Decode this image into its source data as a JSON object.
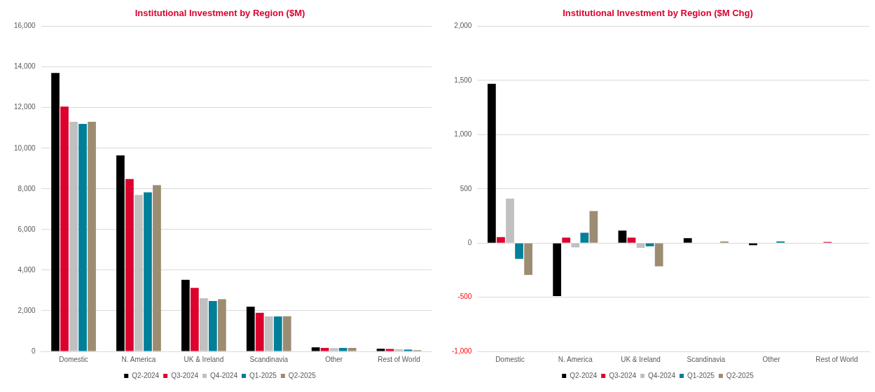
{
  "chart_data": [
    {
      "type": "bar",
      "title": "Institutional Investment by Region ($M)",
      "categories": [
        "Domestic",
        "N. America",
        "UK & Ireland",
        "Scandinavia",
        "Other",
        "Rest of World"
      ],
      "ylim": [
        0,
        16000
      ],
      "yticks": [
        {
          "value": 0,
          "label": "0"
        },
        {
          "value": 2000,
          "label": "2,000"
        },
        {
          "value": 4000,
          "label": "4,000"
        },
        {
          "value": 6000,
          "label": "6,000"
        },
        {
          "value": 8000,
          "label": "8,000"
        },
        {
          "value": 10000,
          "label": "10,000"
        },
        {
          "value": 12000,
          "label": "12,000"
        },
        {
          "value": 14000,
          "label": "14,000"
        },
        {
          "value": 16000,
          "label": "16,000"
        }
      ],
      "grid": "y",
      "legend": "bottom",
      "series": [
        {
          "name": "Q2-2024",
          "color": "#000000",
          "values": [
            13700,
            9650,
            3520,
            2200,
            200,
            130
          ]
        },
        {
          "name": "Q3-2024",
          "color": "#dc002e",
          "values": [
            12050,
            8480,
            3130,
            1900,
            170,
            120
          ]
        },
        {
          "name": "Q4-2024",
          "color": "#c0c0c0",
          "values": [
            11300,
            7700,
            2620,
            1720,
            160,
            100
          ]
        },
        {
          "name": "Q1-2025",
          "color": "#007f99",
          "values": [
            11200,
            7830,
            2480,
            1720,
            170,
            90
          ]
        },
        {
          "name": "Q2-2025",
          "color": "#9c8c72",
          "values": [
            11300,
            8180,
            2570,
            1730,
            170,
            60
          ]
        }
      ]
    },
    {
      "type": "bar",
      "title": "Institutional Investment by Region ($M Chg)",
      "categories": [
        "Domestic",
        "N. America",
        "UK & Ireland",
        "Scandinavia",
        "Other",
        "Rest of World"
      ],
      "ylim": [
        -1000,
        2000
      ],
      "yticks": [
        {
          "value": -1000,
          "label": "-1,000"
        },
        {
          "value": -500,
          "label": "-500"
        },
        {
          "value": 0,
          "label": "0"
        },
        {
          "value": 500,
          "label": "500"
        },
        {
          "value": 1000,
          "label": "1,000"
        },
        {
          "value": 1500,
          "label": "1,500"
        },
        {
          "value": 2000,
          "label": "2,000"
        }
      ],
      "grid": "y",
      "legend": "bottom",
      "series": [
        {
          "name": "Q2-2024",
          "color": "#000000",
          "values": [
            1470,
            -490,
            115,
            45,
            -20,
            0
          ]
        },
        {
          "name": "Q3-2024",
          "color": "#dc002e",
          "values": [
            55,
            50,
            50,
            null,
            0,
            10
          ]
        },
        {
          "name": "Q4-2024",
          "color": "#c0c0c0",
          "values": [
            410,
            -40,
            -45,
            null,
            null,
            -2
          ]
        },
        {
          "name": "Q1-2025",
          "color": "#007f99",
          "values": [
            -145,
            95,
            -30,
            0,
            15,
            0
          ]
        },
        {
          "name": "Q2-2025",
          "color": "#9c8c72",
          "values": [
            -295,
            295,
            -215,
            15,
            null,
            0
          ]
        }
      ]
    }
  ]
}
